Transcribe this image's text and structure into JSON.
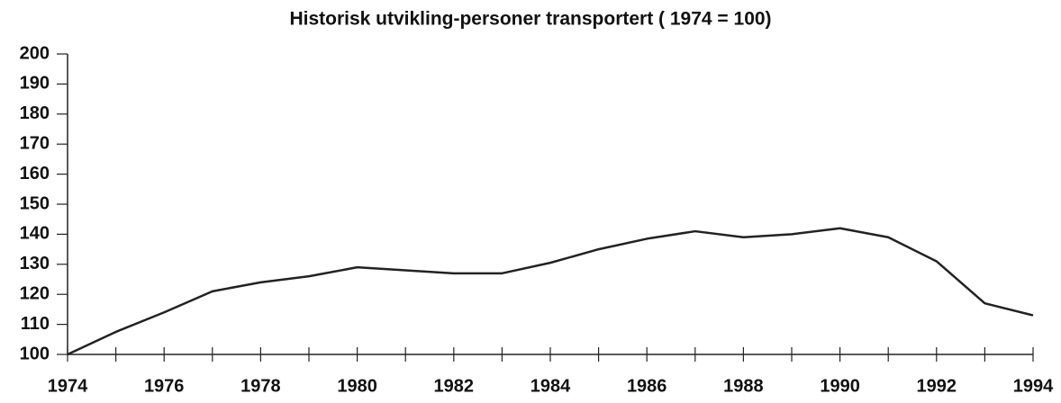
{
  "chart_data": {
    "type": "line",
    "title": "Historisk utvikling-personer transportert ( 1974 = 100)",
    "x": [
      1974,
      1975,
      1976,
      1977,
      1978,
      1979,
      1980,
      1981,
      1982,
      1983,
      1984,
      1985,
      1986,
      1987,
      1988,
      1989,
      1990,
      1991,
      1992,
      1993,
      1994
    ],
    "values": [
      100,
      107.5,
      114,
      121,
      124,
      126,
      129,
      128,
      127,
      127,
      130.5,
      135,
      138.5,
      141,
      139,
      140,
      142,
      139,
      131,
      117,
      113
    ],
    "color": "#222222",
    "xlim": [
      1974,
      1994
    ],
    "xticks": [
      1974,
      1976,
      1978,
      1980,
      1982,
      1984,
      1986,
      1988,
      1990,
      1992,
      1994
    ],
    "xminorticks": [
      1975,
      1977,
      1979,
      1981,
      1983,
      1985,
      1987,
      1989,
      1991,
      1993
    ],
    "ylim": [
      100,
      200
    ],
    "yticks": [
      100,
      110,
      120,
      130,
      140,
      150,
      160,
      170,
      180,
      190,
      200
    ],
    "grid": false
  }
}
